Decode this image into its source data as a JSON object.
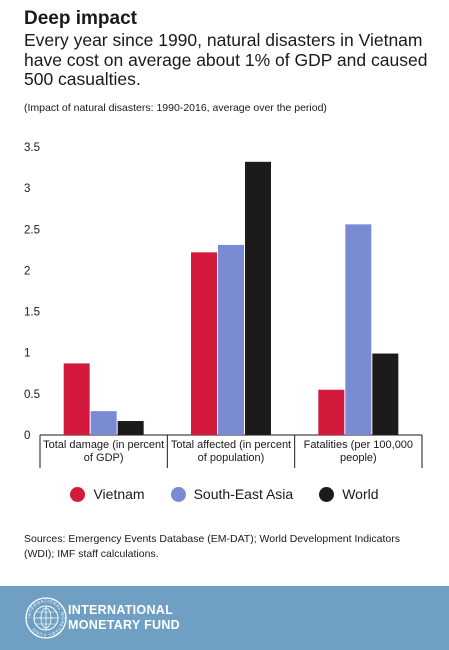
{
  "header": {
    "title": "Deep impact",
    "subtitle": "Every year since 1990, natural disasters in Vietnam have cost on average about 1% of GDP and caused 500 casualties.",
    "note": "(Impact of natural disasters: 1990-2016, average over the period)"
  },
  "chart_data": {
    "type": "bar",
    "categories": [
      [
        "Total damage (in percent",
        "of GDP)"
      ],
      [
        "Total affected (in percent",
        "of population)"
      ],
      [
        "Fatalities (per 100,000",
        "people)"
      ]
    ],
    "series": [
      {
        "name": "Vietnam",
        "color": "#d41a3c",
        "values": [
          0.87,
          2.22,
          0.55
        ]
      },
      {
        "name": "South-East Asia",
        "color": "#7b8bd3",
        "values": [
          0.29,
          2.31,
          2.56
        ]
      },
      {
        "name": "World",
        "color": "#1d1a1b",
        "values": [
          0.17,
          3.32,
          0.99
        ]
      }
    ],
    "yticks": [
      "3.5",
      "3",
      "2.5",
      "2",
      "1.5",
      "1",
      "0.5",
      "0"
    ],
    "ylim": [
      0,
      3.5
    ],
    "grid": false,
    "legend_position": "bottom"
  },
  "footer": {
    "sources": "Sources: Emergency Events Database (EM-DAT); World Development Indicators (WDI); IMF staff calculations.",
    "org_line1": "INTERNATIONAL",
    "org_line2": "MONETARY FUND",
    "seal_text": "INTERNATIONAL MONETARY FUND"
  }
}
